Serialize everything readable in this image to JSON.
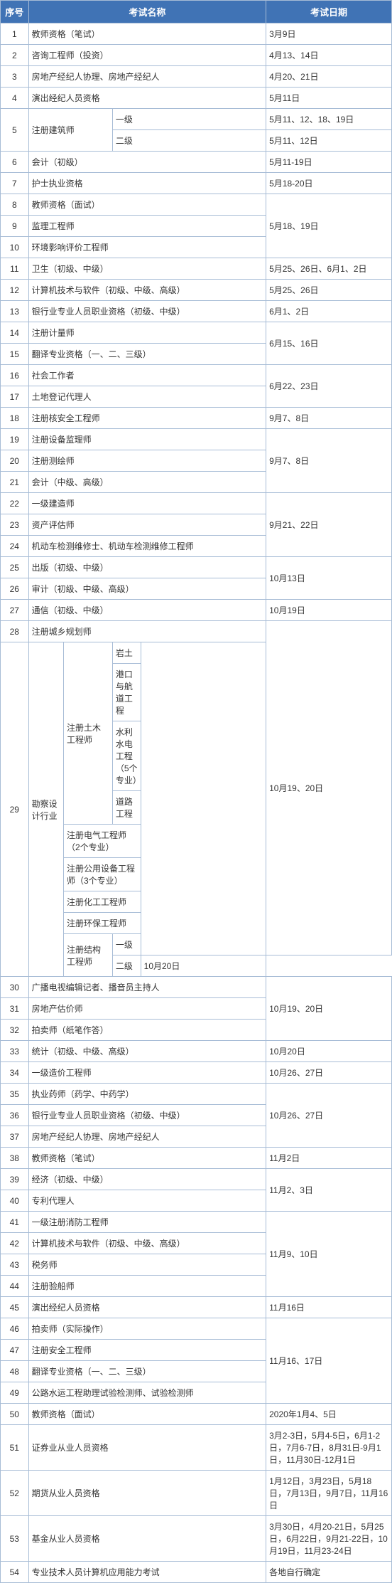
{
  "header": {
    "num": "序号",
    "name": "考试名称",
    "date": "考试日期"
  },
  "rows": [
    {
      "n": "1",
      "name": "教师资格（笔试）",
      "date": "3月9日"
    },
    {
      "n": "2",
      "name": "咨询工程师（投资）",
      "date": "4月13、14日"
    },
    {
      "n": "3",
      "name": "房地产经纪人协理、房地产经纪人",
      "date": "4月20、21日"
    },
    {
      "n": "4",
      "name": "演出经纪人员资格",
      "date": "5月11日"
    },
    {
      "n": "5",
      "name": "注册建筑师",
      "lv1": "一级",
      "d1": "5月11、12、18、19日",
      "lv2": "二级",
      "d2": "5月11、12日"
    },
    {
      "n": "6",
      "name": "会计（初级）",
      "date": "5月11-19日"
    },
    {
      "n": "7",
      "name": "护士执业资格",
      "date": "5月18-20日"
    },
    {
      "n": "8",
      "name": "教师资格（面试）"
    },
    {
      "n": "9",
      "name": "监理工程师",
      "date": "5月18、19日"
    },
    {
      "n": "10",
      "name": "环境影响评价工程师"
    },
    {
      "n": "11",
      "name": "卫生（初级、中级）",
      "date": "5月25、26日、6月1、2日"
    },
    {
      "n": "12",
      "name": "计算机技术与软件（初级、中级、高级）",
      "date": "5月25、26日"
    },
    {
      "n": "13",
      "name": "银行业专业人员职业资格（初级、中级）",
      "date": "6月1、2日"
    },
    {
      "n": "14",
      "name": "注册计量师"
    },
    {
      "n": "15",
      "name": "翻译专业资格（一、二、三级）",
      "date": "6月15、16日"
    },
    {
      "n": "16",
      "name": "社会工作者"
    },
    {
      "n": "17",
      "name": "土地登记代理人",
      "date": "6月22、23日"
    },
    {
      "n": "18",
      "name": "注册核安全工程师",
      "date": "9月7、8日"
    },
    {
      "n": "19",
      "name": "注册设备监理师"
    },
    {
      "n": "20",
      "name": "注册测绘师",
      "date": "9月7、8日"
    },
    {
      "n": "21",
      "name": "会计（中级、高级）"
    },
    {
      "n": "22",
      "name": "一级建造师"
    },
    {
      "n": "23",
      "name": "资产评估师",
      "date": "9月21、22日"
    },
    {
      "n": "24",
      "name": "机动车检测维修士、机动车检测维修工程师"
    },
    {
      "n": "25",
      "name": "出版（初级、中级）"
    },
    {
      "n": "26",
      "name": "审计（初级、中级、高级）",
      "date": "10月13日"
    },
    {
      "n": "27",
      "name": "通信（初级、中级）",
      "date": "10月19日"
    },
    {
      "n": "28",
      "name": "注册城乡规划师"
    },
    {
      "n": "29",
      "name": "勘察设计行业",
      "g1": "注册土木工程师",
      "g1a": "岩土",
      "g1b": "港口与航道工程",
      "g1c": "水利水电工程（5个专业）",
      "g1d": "道路工程",
      "g2": "注册电气工程师（2个专业）",
      "g3": "注册公用设备工程师（3个专业）",
      "g4": "注册化工工程师",
      "g5": "注册环保工程师",
      "g6": "注册结构工程师",
      "g6a": "一级",
      "g6b": "二级",
      "date": "10月19、20日",
      "date2": "10月20日"
    },
    {
      "n": "30",
      "name": "广播电视编辑记者、播音员主持人"
    },
    {
      "n": "31",
      "name": "房地产估价师",
      "date": "10月19、20日"
    },
    {
      "n": "32",
      "name": "拍卖师（纸笔作答）"
    },
    {
      "n": "33",
      "name": "统计（初级、中级、高级）",
      "date": "10月20日"
    },
    {
      "n": "34",
      "name": "一级造价工程师",
      "date": "10月26、27日"
    },
    {
      "n": "35",
      "name": "执业药师（药学、中药学）"
    },
    {
      "n": "36",
      "name": "银行业专业人员职业资格（初级、中级）",
      "date": "10月26、27日"
    },
    {
      "n": "37",
      "name": "房地产经纪人协理、房地产经纪人"
    },
    {
      "n": "38",
      "name": "教师资格（笔试）",
      "date": "11月2日"
    },
    {
      "n": "39",
      "name": "经济（初级、中级）"
    },
    {
      "n": "40",
      "name": "专利代理人",
      "date": "11月2、3日"
    },
    {
      "n": "41",
      "name": "一级注册消防工程师"
    },
    {
      "n": "42",
      "name": "计算机技术与软件（初级、中级、高级）",
      "date": "11月9、10日"
    },
    {
      "n": "43",
      "name": "税务师"
    },
    {
      "n": "44",
      "name": "注册验船师"
    },
    {
      "n": "45",
      "name": "演出经纪人员资格",
      "date": "11月16日"
    },
    {
      "n": "46",
      "name": "拍卖师（实际操作）"
    },
    {
      "n": "47",
      "name": "注册安全工程师"
    },
    {
      "n": "48",
      "name": "翻译专业资格（一、二、三级）",
      "date": "11月16、17日"
    },
    {
      "n": "49",
      "name": "公路水运工程助理试验检测师、试验检测师"
    },
    {
      "n": "50",
      "name": "教师资格（面试）",
      "date": "2020年1月4、5日"
    },
    {
      "n": "51",
      "name": "证券业从业人员资格",
      "date": "3月2-3日，5月4-5日，6月1-2日，7月6-7日，8月31日-9月1日，11月30日-12月1日"
    },
    {
      "n": "52",
      "name": "期货从业人员资格",
      "date": "1月12日，3月23日，5月18日，7月13日，9月7日，11月16日"
    },
    {
      "n": "53",
      "name": "基金从业人员资格",
      "date": "3月30日，4月20-21日，5月25日，6月22日，9月21-22日，10月19日，11月23-24日"
    },
    {
      "n": "54",
      "name": "专业技术人员计算机应用能力考试",
      "date": "各地自行确定"
    }
  ]
}
